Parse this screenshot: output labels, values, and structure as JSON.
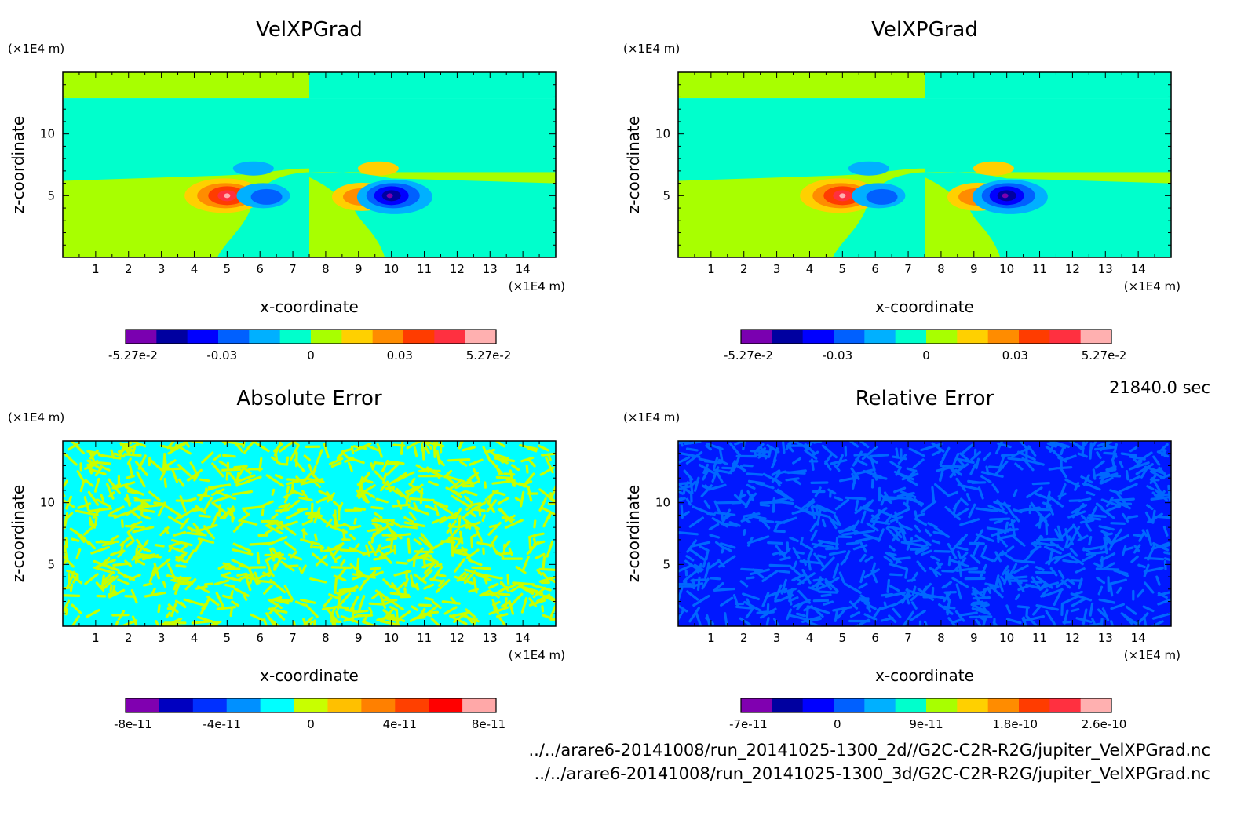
{
  "time_label": "21840.0 sec",
  "file_paths": [
    "../../arare6-20141008/run_20141025-1300_2d//G2C-C2R-R2G/jupiter_VelXPGrad.nc",
    "../../arare6-20141008/run_20141025-1300_3d/G2C-C2R-R2G/jupiter_VelXPGrad.nc"
  ],
  "chart_data": [
    {
      "type": "heatmap",
      "title": "VelXPGrad",
      "xlabel": "x-coordinate",
      "ylabel": "z-coordinate",
      "x_unit": "(×1E4 m)",
      "y_unit": "(×1E4 m)",
      "xlim": [
        0,
        15
      ],
      "ylim": [
        0,
        15
      ],
      "x_ticks": [
        1,
        2,
        3,
        4,
        5,
        6,
        7,
        8,
        9,
        10,
        11,
        12,
        13,
        14
      ],
      "y_ticks": [
        5,
        10
      ],
      "pattern": "field",
      "colorbar": {
        "tick_labels": [
          "-5.27e-2",
          "-0.03",
          "0",
          "0.03",
          "5.27e-2"
        ],
        "colors": [
          "#7a00b0",
          "#0000a0",
          "#0000ff",
          "#0060ff",
          "#00b0ff",
          "#00ffcc",
          "#a8ff00",
          "#ffd000",
          "#ff8c00",
          "#ff3c00",
          "#ff3040",
          "#ffb0b0"
        ]
      }
    },
    {
      "type": "heatmap",
      "title": "VelXPGrad",
      "xlabel": "x-coordinate",
      "ylabel": "z-coordinate",
      "x_unit": "(×1E4 m)",
      "y_unit": "(×1E4 m)",
      "xlim": [
        0,
        15
      ],
      "ylim": [
        0,
        15
      ],
      "x_ticks": [
        1,
        2,
        3,
        4,
        5,
        6,
        7,
        8,
        9,
        10,
        11,
        12,
        13,
        14
      ],
      "y_ticks": [
        5,
        10
      ],
      "pattern": "field",
      "colorbar": {
        "tick_labels": [
          "-5.27e-2",
          "-0.03",
          "0",
          "0.03",
          "5.27e-2"
        ],
        "colors": [
          "#7a00b0",
          "#0000a0",
          "#0000ff",
          "#0060ff",
          "#00b0ff",
          "#00ffcc",
          "#a8ff00",
          "#ffd000",
          "#ff8c00",
          "#ff3c00",
          "#ff3040",
          "#ffb0b0"
        ]
      }
    },
    {
      "type": "heatmap",
      "title": "Absolute Error",
      "xlabel": "x-coordinate",
      "ylabel": "z-coordinate",
      "x_unit": "(×1E4 m)",
      "y_unit": "(×1E4 m)",
      "xlim": [
        0,
        15
      ],
      "ylim": [
        0,
        15
      ],
      "x_ticks": [
        1,
        2,
        3,
        4,
        5,
        6,
        7,
        8,
        9,
        10,
        11,
        12,
        13,
        14
      ],
      "y_ticks": [
        5,
        10
      ],
      "pattern": "noise",
      "noise_colors": [
        "#00ffff",
        "#c8ff00"
      ],
      "colorbar": {
        "tick_labels": [
          "-8e-11",
          "-4e-11",
          "0",
          "4e-11",
          "8e-11"
        ],
        "colors": [
          "#8000b0",
          "#0000c0",
          "#0030ff",
          "#0090ff",
          "#00ffff",
          "#c8ff00",
          "#ffc000",
          "#ff8000",
          "#ff4000",
          "#ff0000",
          "#ffa8a8"
        ]
      }
    },
    {
      "type": "heatmap",
      "title": "Relative Error",
      "xlabel": "x-coordinate",
      "ylabel": "z-coordinate",
      "x_unit": "(×1E4 m)",
      "y_unit": "(×1E4 m)",
      "xlim": [
        0,
        15
      ],
      "ylim": [
        0,
        15
      ],
      "x_ticks": [
        1,
        2,
        3,
        4,
        5,
        6,
        7,
        8,
        9,
        10,
        11,
        12,
        13,
        14
      ],
      "y_ticks": [
        5,
        10
      ],
      "pattern": "noise",
      "noise_colors": [
        "#0018ff",
        "#0068ff"
      ],
      "colorbar": {
        "tick_labels": [
          "-7e-11",
          "0",
          "9e-11",
          "1.8e-10",
          "2.6e-10"
        ],
        "colors": [
          "#8000b0",
          "#0000a0",
          "#0000ff",
          "#0060ff",
          "#00b0ff",
          "#00ffcc",
          "#a8ff00",
          "#ffd000",
          "#ff8c00",
          "#ff3c00",
          "#ff3040",
          "#ffb0b0"
        ]
      }
    }
  ]
}
